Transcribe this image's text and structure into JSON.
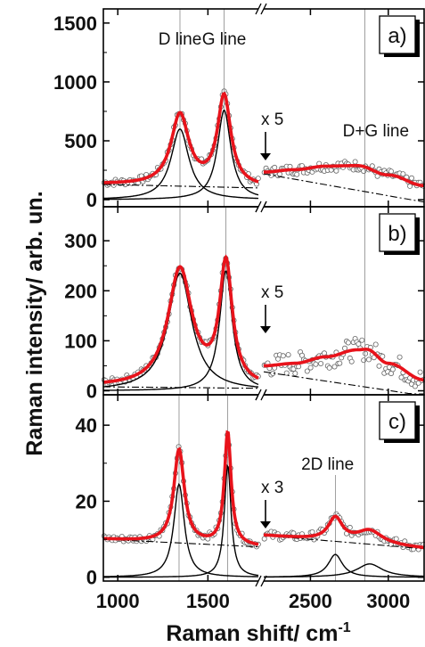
{
  "chart_data": {
    "type": "line",
    "xlabel": "Raman shift/ cm",
    "xlabel_sup": "-1",
    "ylabel": "Raman intensity/ arb. un.",
    "x_ticks": [
      1000,
      1500,
      2500,
      3000
    ],
    "x_segments": [
      [
        920,
        1780
      ],
      [
        2200,
        3230
      ]
    ],
    "axis_break": "between 1780 and 2200",
    "fit_color": "#e8131b",
    "component_color": "#000000",
    "panels": [
      {
        "label": "a)",
        "ylim": [
          -60,
          1620
        ],
        "y_ticks": [
          0,
          500,
          1000,
          1500
        ],
        "annotations": [
          {
            "text": "D line",
            "x": 1345
          },
          {
            "text": "G line",
            "x": 1590
          },
          {
            "text": "D+G line",
            "x": 2850
          },
          {
            "text": "x 5",
            "x": 2260
          }
        ],
        "peaks_left": [
          {
            "name": "D",
            "center": 1345,
            "amplitude": 600,
            "width": 120
          },
          {
            "name": "G",
            "center": 1590,
            "amplitude": 760,
            "width": 90
          }
        ],
        "baseline_left": [
          [
            920,
            130
          ],
          [
            1780,
            100
          ]
        ],
        "baseline_right": [
          [
            2200,
            220
          ],
          [
            3230,
            -20
          ]
        ],
        "fit_right": [
          [
            2200,
            235
          ],
          [
            2400,
            255
          ],
          [
            2600,
            285
          ],
          [
            2800,
            290
          ],
          [
            3000,
            210
          ],
          [
            3230,
            120
          ]
        ],
        "fit_peak_right": 2850
      },
      {
        "label": "b)",
        "ylim": [
          -8,
          368
        ],
        "y_ticks": [
          0,
          100,
          200,
          300
        ],
        "annotations": [
          {
            "text": "x 5",
            "x": 2260
          }
        ],
        "peaks_left": [
          {
            "name": "D",
            "center": 1345,
            "amplitude": 235,
            "width": 160
          },
          {
            "name": "G",
            "center": 1600,
            "amplitude": 240,
            "width": 85
          }
        ],
        "baseline_left": [
          [
            920,
            8
          ],
          [
            1780,
            5
          ]
        ],
        "baseline_right": [
          [
            2200,
            38
          ],
          [
            3230,
            -10
          ]
        ],
        "fit_right": [
          [
            2200,
            50
          ],
          [
            2400,
            55
          ],
          [
            2600,
            68
          ],
          [
            2800,
            82
          ],
          [
            2860,
            83
          ],
          [
            3000,
            55
          ],
          [
            3230,
            22
          ]
        ],
        "fit_peak_right": 2850
      },
      {
        "label": "c)",
        "ylim": [
          -1,
          48
        ],
        "y_ticks": [
          0,
          20,
          40
        ],
        "annotations": [
          {
            "text": "2D line",
            "x": 2660
          },
          {
            "text": "x 3",
            "x": 2260
          }
        ],
        "peaks_left": [
          {
            "name": "D",
            "center": 1340,
            "amplitude": 24.5,
            "width": 70
          },
          {
            "name": "G",
            "center": 1610,
            "amplitude": 29.5,
            "width": 45
          }
        ],
        "baseline_left": [
          [
            920,
            10
          ],
          [
            1780,
            8
          ]
        ],
        "baseline_right": [
          [
            2200,
            11
          ],
          [
            3230,
            7.5
          ]
        ],
        "peaks_right": [
          {
            "name": "2D",
            "center": 2660,
            "amplitude": 6,
            "width": 110
          },
          {
            "name": "D+G",
            "center": 2880,
            "amplitude": 3.5,
            "width": 200
          }
        ],
        "fit_peak_right": 2850
      }
    ]
  }
}
